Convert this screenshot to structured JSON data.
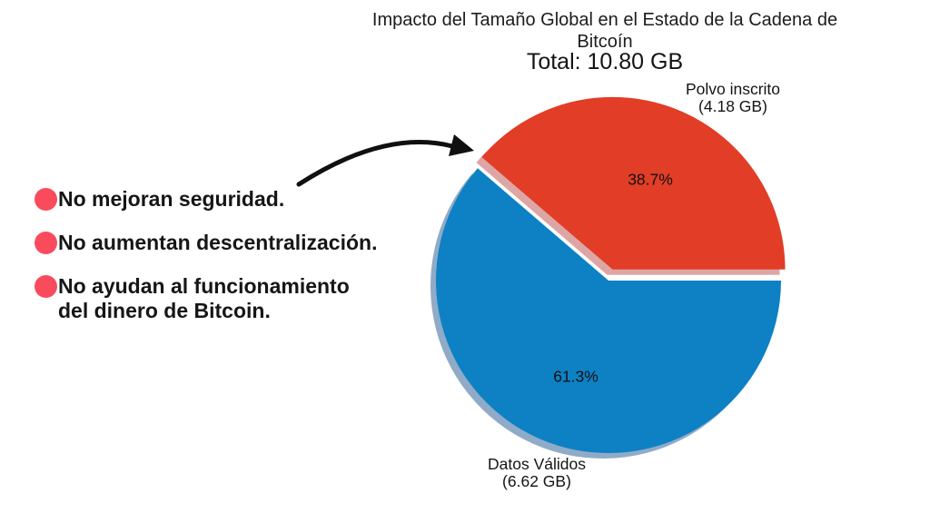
{
  "header": {
    "title_line1": "Impacto del Tamaño Global en el Estado de la Cadena de",
    "title_line2": "Bitcoín",
    "total_label": "Total: 10.80 GB"
  },
  "annotations": {
    "bullet_color": "#fa4b5c",
    "bullets": [
      {
        "line1": "No mejoran seguridad.",
        "line2": ""
      },
      {
        "line1": "No aumentan descentralización.",
        "line2": ""
      },
      {
        "line1": "No ayudan al funcionamiento",
        "line2": "del dinero de Bitcoin."
      }
    ]
  },
  "chart_data": {
    "type": "pie",
    "title": "Impacto del Tamaño Global en el Estado de la Cadena de Bitcoín",
    "total_label": "Total: 10.80 GB",
    "total_gb": 10.8,
    "start_angle_deg": 0,
    "direction": "counterclockwise",
    "legend_position": "none",
    "slices": [
      {
        "label": "Polvo inscrito",
        "size_label": "(4.18 GB)",
        "value_gb": 4.18,
        "percent": 38.7,
        "percent_label": "38.7%",
        "color": "#e23d27",
        "shadow_color": "#dda6a4",
        "exploded": true
      },
      {
        "label": "Datos Válidos",
        "size_label": "(6.62 GB)",
        "value_gb": 6.62,
        "percent": 61.3,
        "percent_label": "61.3%",
        "color": "#0d81c4",
        "shadow_color": "#90abc7",
        "exploded": false
      }
    ]
  }
}
